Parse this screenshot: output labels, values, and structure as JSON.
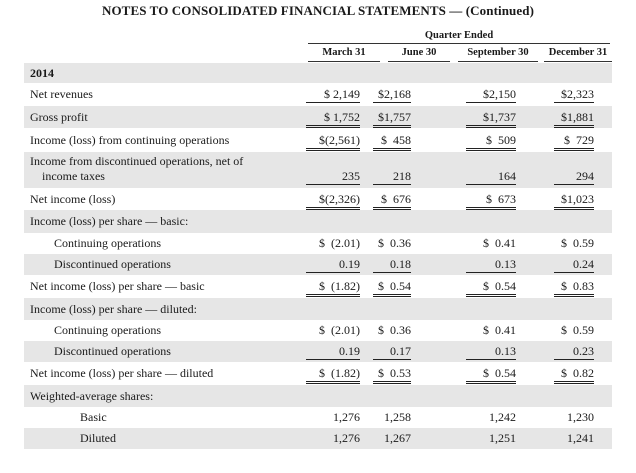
{
  "document": {
    "title": "NOTES TO CONSOLIDATED FINANCIAL STATEMENTS — (Continued)",
    "period_header": "Quarter Ended",
    "columns": [
      "March 31",
      "June 30",
      "September 30",
      "December 31"
    ]
  },
  "rows": [
    {
      "label": "2014",
      "indent": 0,
      "bold": true,
      "values": [
        "",
        "",
        "",
        ""
      ]
    },
    {
      "label": "Net revenues",
      "indent": 0,
      "values": [
        "$ 2,149",
        "$2,168",
        "$2,150",
        "$2,323"
      ],
      "rule": "single"
    },
    {
      "label": "Gross profit",
      "indent": 0,
      "values": [
        "$ 1,752",
        "$1,757",
        "$1,737",
        "$1,881"
      ],
      "rule": "double"
    },
    {
      "label": "Income (loss) from continuing operations",
      "indent": 0,
      "values": [
        "$(2,561)",
        "$  458",
        "$  509",
        "$  729"
      ],
      "rule": "double"
    },
    {
      "label": "Income from discontinued operations, net of",
      "label2": "income taxes",
      "indent": 0,
      "values": [
        "235",
        "218",
        "164",
        "294"
      ],
      "rule": "single"
    },
    {
      "label": "Net income (loss)",
      "indent": 0,
      "values": [
        "$(2,326)",
        "$  676",
        "$  673",
        "$1,023"
      ],
      "rule": "double"
    },
    {
      "label": "Income (loss) per share — basic:",
      "indent": 0,
      "values": [
        "",
        "",
        "",
        ""
      ]
    },
    {
      "label": "Continuing operations",
      "indent": 1,
      "values": [
        "$  (2.01)",
        "$  0.36",
        "$  0.41",
        "$  0.59"
      ]
    },
    {
      "label": "Discontinued operations",
      "indent": 1,
      "values": [
        "0.19",
        "0.18",
        "0.13",
        "0.24"
      ],
      "rule": "single"
    },
    {
      "label": "Net income (loss) per share — basic",
      "indent": 0,
      "values": [
        "$  (1.82)",
        "$  0.54",
        "$  0.54",
        "$  0.83"
      ],
      "rule": "double"
    },
    {
      "label": "Income (loss) per share — diluted:",
      "indent": 0,
      "values": [
        "",
        "",
        "",
        ""
      ]
    },
    {
      "label": "Continuing operations",
      "indent": 1,
      "values": [
        "$  (2.01)",
        "$  0.36",
        "$  0.41",
        "$  0.59"
      ]
    },
    {
      "label": "Discontinued operations",
      "indent": 1,
      "values": [
        "0.19",
        "0.17",
        "0.13",
        "0.23"
      ],
      "rule": "single"
    },
    {
      "label": "Net income (loss) per share — diluted",
      "indent": 0,
      "values": [
        "$  (1.82)",
        "$  0.53",
        "$  0.54",
        "$  0.82"
      ],
      "rule": "double"
    },
    {
      "label": "Weighted-average shares:",
      "indent": 0,
      "values": [
        "",
        "",
        "",
        ""
      ]
    },
    {
      "label": "Basic",
      "indent": 2,
      "values": [
        "1,276",
        "1,258",
        "1,242",
        "1,230"
      ]
    },
    {
      "label": "Diluted",
      "indent": 2,
      "values": [
        "1,276",
        "1,267",
        "1,251",
        "1,241"
      ]
    }
  ]
}
